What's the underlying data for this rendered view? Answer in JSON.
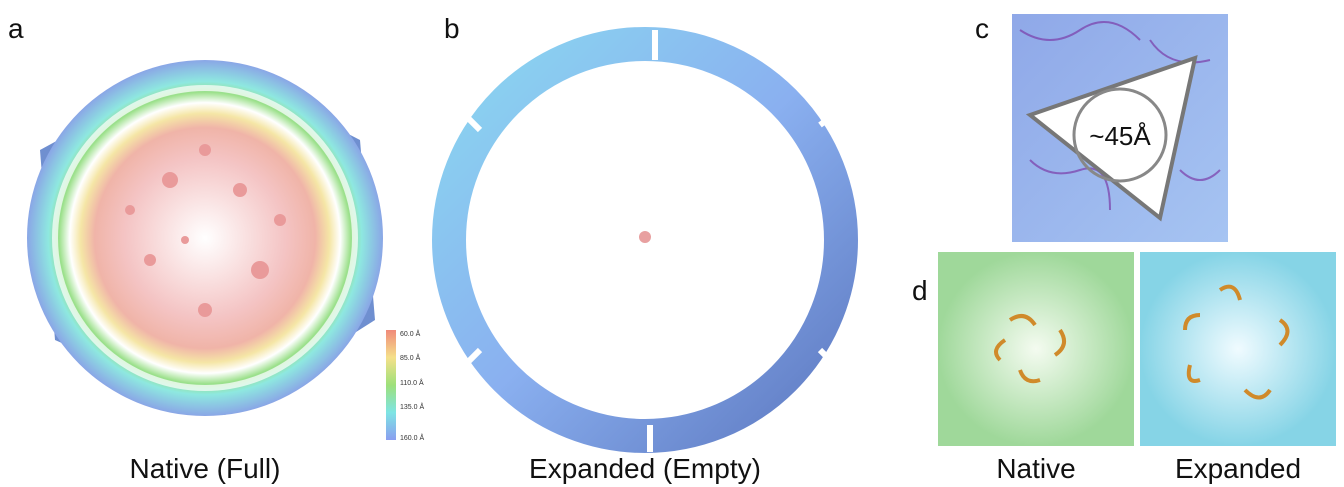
{
  "panels": [
    {
      "label": "a",
      "caption": "Native (Full)",
      "color_key": [
        "60.0 Å",
        "85.0 Å",
        "110.0 Å",
        "135.0 Å",
        "160.0 Å"
      ]
    },
    {
      "label": "b",
      "caption": "Expanded (Empty)"
    },
    {
      "label": "c",
      "annotation": "~45Å"
    },
    {
      "label": "d",
      "captions": [
        "Native",
        "Expanded"
      ]
    }
  ]
}
